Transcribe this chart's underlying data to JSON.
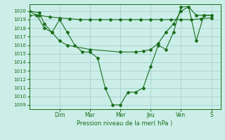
{
  "background_color": "#cceee8",
  "grid_color": "#99cccc",
  "line_color": "#1a6e1a",
  "marker_color": "#1a6e1a",
  "xlabel": "Pression niveau de la mer( hPa )",
  "ylim": [
    1008.5,
    1020.8
  ],
  "xlim": [
    0,
    6.3
  ],
  "yticks": [
    1009,
    1010,
    1011,
    1012,
    1013,
    1014,
    1015,
    1016,
    1017,
    1018,
    1019,
    1020
  ],
  "day_labels": [
    "Dim",
    "Mar",
    "Mer",
    "Jeu",
    "Ven",
    "S"
  ],
  "day_positions": [
    1.0,
    2.0,
    3.0,
    4.0,
    5.0,
    6.0
  ],
  "series1_x": [
    0.0,
    0.33,
    0.67,
    1.0,
    1.33,
    1.67,
    2.0,
    2.33,
    2.67,
    3.0,
    3.33,
    3.67,
    4.0,
    4.33,
    4.67,
    5.0,
    5.33,
    5.67,
    6.0
  ],
  "series1_y": [
    1019.5,
    1019.5,
    1019.3,
    1019.2,
    1019.1,
    1019.0,
    1019.0,
    1019.0,
    1019.0,
    1019.0,
    1019.0,
    1019.0,
    1019.0,
    1019.0,
    1019.0,
    1019.0,
    1019.0,
    1019.1,
    1019.2
  ],
  "series2_x": [
    0.0,
    0.25,
    0.5,
    0.75,
    1.0,
    1.25,
    1.5,
    1.75,
    2.0,
    2.25,
    2.5,
    2.75,
    3.0,
    3.25,
    3.5,
    3.75,
    4.0,
    4.25,
    4.5,
    4.75,
    5.0,
    5.25,
    5.5,
    5.75,
    6.0
  ],
  "series2_y": [
    1020.0,
    1019.5,
    1018.0,
    1017.5,
    1019.0,
    1017.5,
    1016.0,
    1015.2,
    1015.2,
    1014.5,
    1011.0,
    1009.0,
    1009.0,
    1010.5,
    1010.5,
    1011.0,
    1013.5,
    1016.0,
    1015.5,
    1017.5,
    1020.5,
    1020.5,
    1016.5,
    1019.5,
    1019.5
  ],
  "series3_x": [
    0.0,
    0.33,
    0.5,
    0.75,
    1.0,
    1.25,
    2.0,
    3.0,
    3.5,
    3.75,
    4.0,
    4.25,
    4.5,
    4.75,
    5.0,
    5.25,
    5.5,
    5.75,
    6.0
  ],
  "series3_y": [
    1020.0,
    1019.8,
    1018.5,
    1017.5,
    1016.5,
    1016.0,
    1015.5,
    1015.2,
    1015.2,
    1015.3,
    1015.5,
    1016.2,
    1017.5,
    1018.5,
    1020.0,
    1020.5,
    1019.5,
    1019.5,
    1019.5
  ]
}
